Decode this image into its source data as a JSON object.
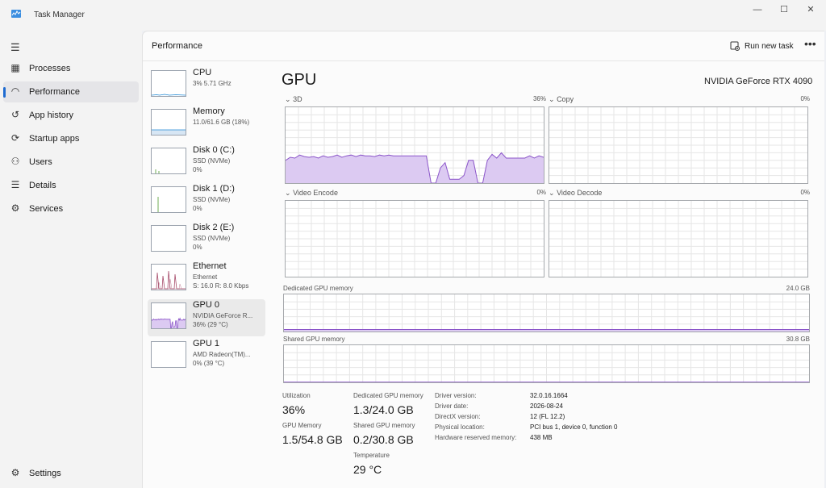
{
  "window": {
    "title": "Task Manager",
    "minimize_glyph": "—",
    "maximize_glyph": "☐",
    "close_glyph": "✕"
  },
  "sidebar": {
    "menu_glyph": "☰",
    "items": [
      {
        "label": "Processes",
        "icon": "processes-icon",
        "glyph": "▦"
      },
      {
        "label": "Performance",
        "icon": "performance-icon",
        "glyph": "◠"
      },
      {
        "label": "App history",
        "icon": "history-icon",
        "glyph": "↺"
      },
      {
        "label": "Startup apps",
        "icon": "startup-icon",
        "glyph": "⟳"
      },
      {
        "label": "Users",
        "icon": "users-icon",
        "glyph": "⚇"
      },
      {
        "label": "Details",
        "icon": "details-icon",
        "glyph": "☰"
      },
      {
        "label": "Services",
        "icon": "services-icon",
        "glyph": "⚙"
      }
    ],
    "active_index": 1,
    "settings": {
      "label": "Settings",
      "icon": "gear-icon",
      "glyph": "⚙"
    }
  },
  "header": {
    "title": "Performance",
    "run_new_task": "Run new task",
    "more_glyph": "•••"
  },
  "devices": [
    {
      "name": "CPU",
      "sub1": "3% 5.71 GHz",
      "sub2": ""
    },
    {
      "name": "Memory",
      "sub1": "11.0/61.6 GB (18%)",
      "sub2": ""
    },
    {
      "name": "Disk 0 (C:)",
      "sub1": "SSD (NVMe)",
      "sub2": "0%"
    },
    {
      "name": "Disk 1 (D:)",
      "sub1": "SSD (NVMe)",
      "sub2": "0%"
    },
    {
      "name": "Disk 2 (E:)",
      "sub1": "SSD (NVMe)",
      "sub2": "0%"
    },
    {
      "name": "Ethernet",
      "sub1": "Ethernet",
      "sub2": "S: 16.0 R: 8.0 Kbps"
    },
    {
      "name": "GPU 0",
      "sub1": "NVIDIA GeForce R...",
      "sub2": "36% (29 °C)"
    },
    {
      "name": "GPU 1",
      "sub1": "AMD Radeon(TM)...",
      "sub2": "0% (39 °C)"
    }
  ],
  "selected_device_index": 6,
  "gpu": {
    "title": "GPU",
    "model": "NVIDIA GeForce RTX 4090",
    "engines": [
      {
        "name": "3D",
        "value": "36%"
      },
      {
        "name": "Copy",
        "value": "0%"
      },
      {
        "name": "Video Encode",
        "value": "0%"
      },
      {
        "name": "Video Decode",
        "value": "0%"
      }
    ],
    "dedicated_memory": {
      "label": "Dedicated GPU memory",
      "max": "24.0 GB"
    },
    "shared_memory": {
      "label": "Shared GPU memory",
      "max": "30.8 GB"
    },
    "util_3d_history": [
      0.3,
      0.34,
      0.33,
      0.37,
      0.35,
      0.34,
      0.35,
      0.33,
      0.36,
      0.34,
      0.35,
      0.37,
      0.34,
      0.36,
      0.37,
      0.35,
      0.37,
      0.36,
      0.36,
      0.35,
      0.37,
      0.36,
      0.37,
      0.36,
      0.36,
      0.36,
      0.36,
      0.36,
      0.36,
      0.36,
      0.36,
      0.0,
      0.0,
      0.2,
      0.27,
      0.05,
      0.05,
      0.05,
      0.1,
      0.3,
      0.3,
      0.0,
      0.0,
      0.3,
      0.38,
      0.33,
      0.4,
      0.33,
      0.33,
      0.33,
      0.33,
      0.33,
      0.36,
      0.33,
      0.36,
      0.34
    ],
    "dedicated_fraction": 0.054,
    "shared_fraction": 0.0065,
    "chevron_glyph": "⌄"
  },
  "stats": {
    "utilization": {
      "label": "Utilization",
      "value": "36%"
    },
    "dedicated": {
      "label": "Dedicated GPU memory",
      "value": "1.3/24.0 GB"
    },
    "gpu_memory": {
      "label": "GPU Memory",
      "value": "1.5/54.8 GB"
    },
    "shared": {
      "label": "Shared GPU memory",
      "value": "0.2/30.8 GB"
    },
    "temperature": {
      "label": "Temperature",
      "value": "29 °C"
    }
  },
  "info": [
    {
      "key": "Driver version:",
      "value": "32.0.16.1664"
    },
    {
      "key": "Driver date:",
      "value": "2026-08-24"
    },
    {
      "key": "DirectX version:",
      "value": "12 (FL 12.2)"
    },
    {
      "key": "Physical location:",
      "value": "PCI bus 1, device 0, function 0"
    },
    {
      "key": "Hardware reserved memory:",
      "value": "438 MB"
    }
  ],
  "colors": {
    "gpu_fill": "#dccaf2",
    "gpu_line": "#8b55c9",
    "cpu_line": "#1f88d4",
    "disk_line": "#4c9a2a",
    "eth_line": "#a74c6b",
    "grid": "#e6e6e6",
    "accent": "#1f6bd1"
  }
}
